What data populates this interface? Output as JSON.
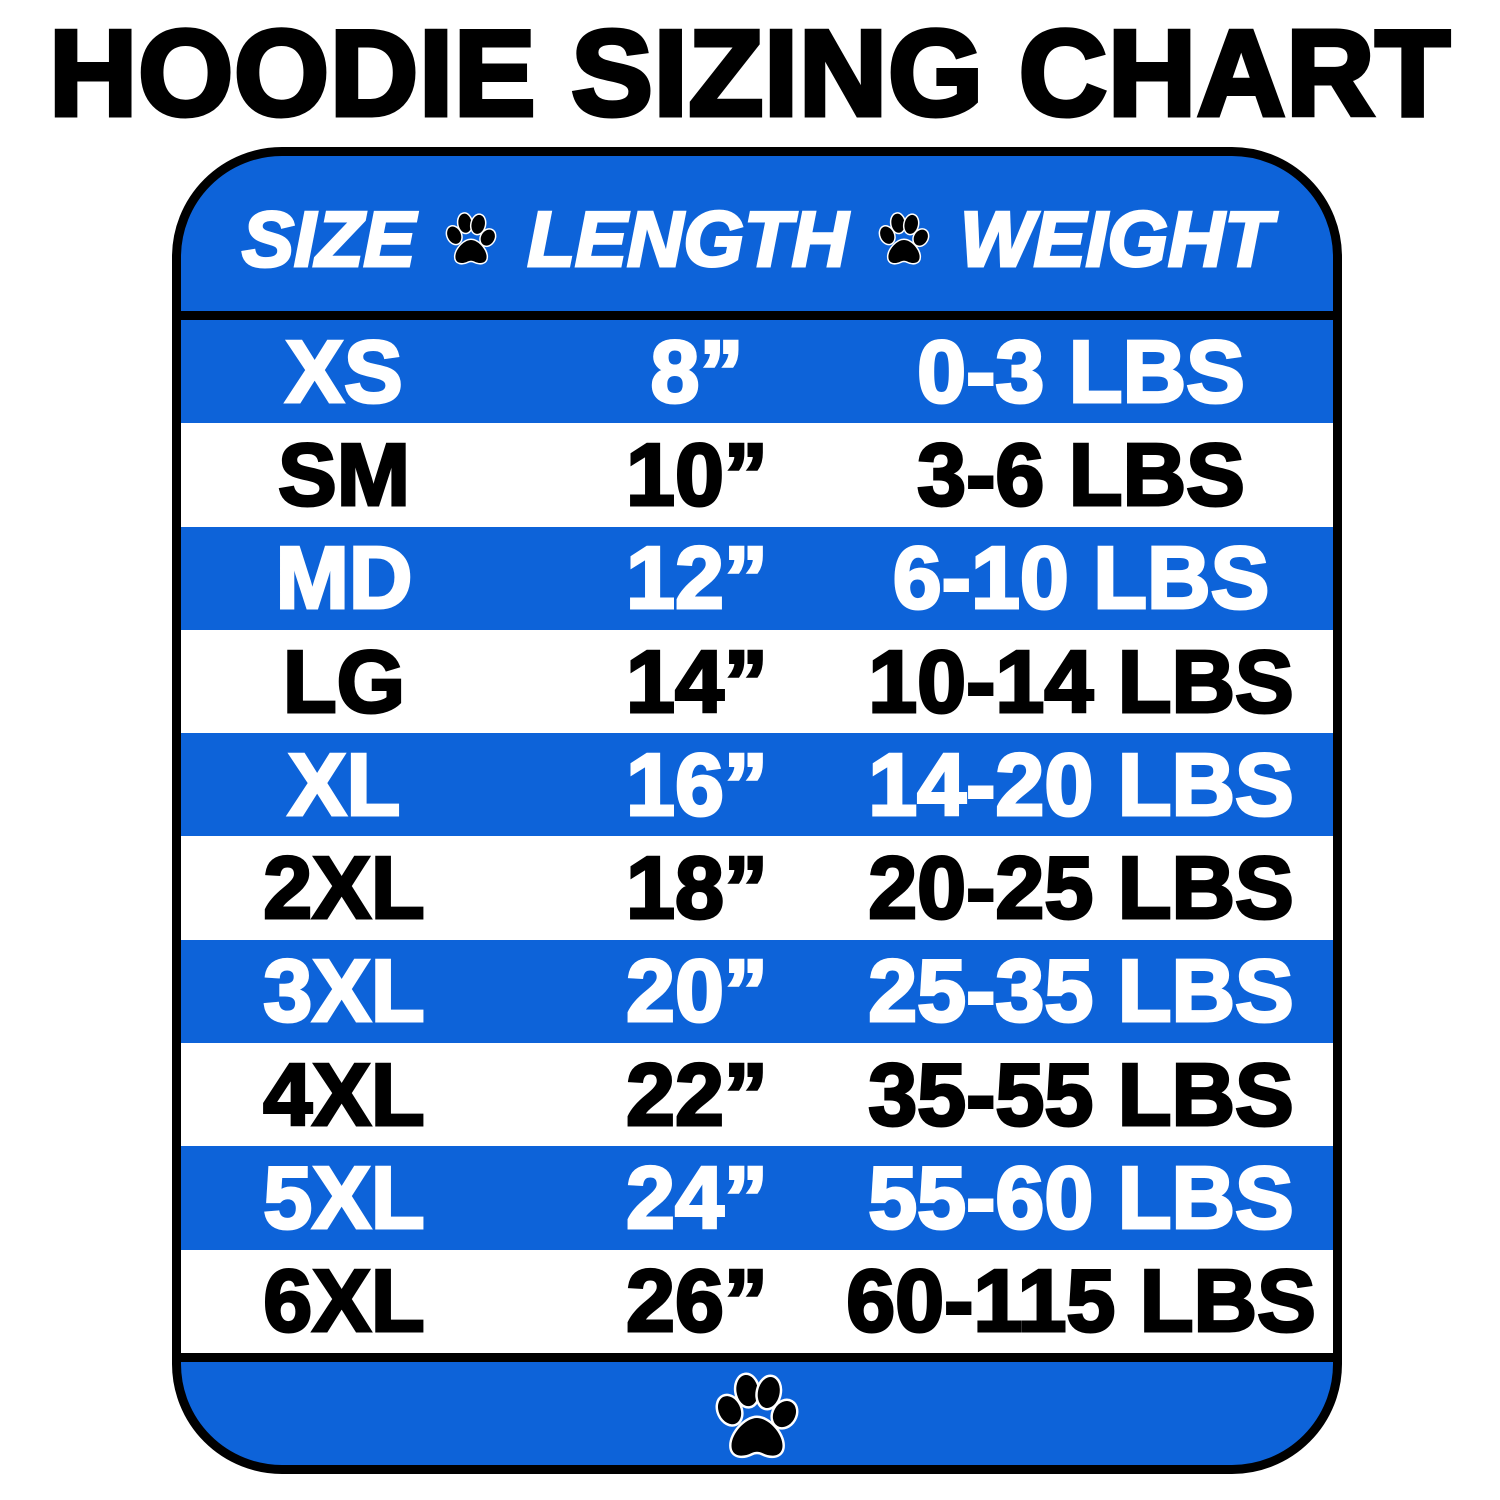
{
  "title": "HOODIE SIZING CHART",
  "colors": {
    "blue": "#0d63d9",
    "black": "#000000",
    "white": "#ffffff"
  },
  "header": {
    "size": "SIZE",
    "length": "LENGTH",
    "weight": "WEIGHT",
    "separator_icon": "paw-print-icon"
  },
  "rows": [
    {
      "size": "XS",
      "length": "8”",
      "weight": "0-3 LBS"
    },
    {
      "size": "SM",
      "length": "10”",
      "weight": "3-6 LBS"
    },
    {
      "size": "MD",
      "length": "12”",
      "weight": "6-10 LBS"
    },
    {
      "size": "LG",
      "length": "14”",
      "weight": "10-14 LBS"
    },
    {
      "size": "XL",
      "length": "16”",
      "weight": "14-20 LBS"
    },
    {
      "size": "2XL",
      "length": "18”",
      "weight": "20-25 LBS"
    },
    {
      "size": "3XL",
      "length": "20”",
      "weight": "25-35 LBS"
    },
    {
      "size": "4XL",
      "length": "22”",
      "weight": "35-55 LBS"
    },
    {
      "size": "5XL",
      "length": "24”",
      "weight": "55-60 LBS"
    },
    {
      "size": "6XL",
      "length": "26”",
      "weight": "60-115 LBS"
    }
  ],
  "footer": {
    "icon": "paw-print-icon"
  }
}
